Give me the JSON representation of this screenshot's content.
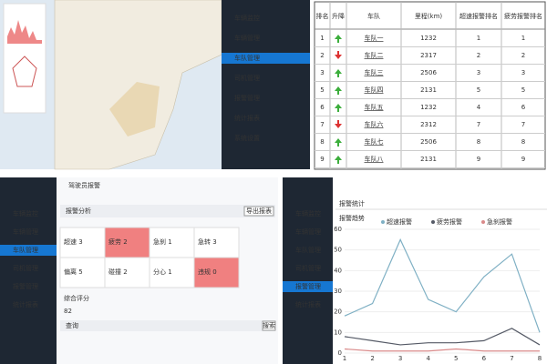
{
  "map_panel": {
    "menu": [
      "车辆监控",
      "车辆管理",
      "车队管理",
      "司机管理",
      "报警管理",
      "统计报表",
      "系统设置"
    ],
    "active": 2
  },
  "table": {
    "headers": [
      "排名",
      "升降",
      "车队",
      "里程(km)",
      "超速报警排名",
      "疲劳报警排名"
    ],
    "trend": [
      "up",
      "down",
      "up",
      "up",
      "up",
      "down",
      "up",
      "up"
    ],
    "rows": [
      [
        "1",
        "车队一",
        "1232",
        "1",
        "1"
      ],
      [
        "2",
        "车队二",
        "2317",
        "2",
        "2"
      ],
      [
        "3",
        "车队三",
        "2506",
        "3",
        "3"
      ],
      [
        "5",
        "车队四",
        "2131",
        "5",
        "5"
      ],
      [
        "6",
        "车队五",
        "1232",
        "4",
        "6"
      ],
      [
        "7",
        "车队六",
        "2312",
        "7",
        "7"
      ],
      [
        "8",
        "车队七",
        "2506",
        "8",
        "8"
      ],
      [
        "9",
        "车队八",
        "2131",
        "9",
        "9"
      ]
    ]
  },
  "grid_panel": {
    "menu": [
      "车辆监控",
      "车辆管理",
      "车队管理",
      "司机管理",
      "报警管理",
      "统计报表"
    ],
    "active": 2,
    "title": "驾驶员报警",
    "section": "报警分析",
    "button": "导出报表",
    "cells": [
      "超速 3",
      "疲劳 2",
      "急刹 1",
      "急转 3",
      "偏离 5",
      "碰撞 2",
      "分心 1",
      "违规 0"
    ],
    "alert_cells": [
      1,
      7
    ],
    "score_label": "综合评分",
    "score": "82",
    "query_label": "查询",
    "query_button": "搜索"
  },
  "chart_data": {
    "type": "line",
    "title": "报警趋势",
    "tab": "报警统计",
    "menu": [
      "车辆监控",
      "车辆管理",
      "车队管理",
      "司机管理",
      "报警管理",
      "统计报表"
    ],
    "active": 4,
    "categories": [
      "1",
      "2",
      "3",
      "4",
      "5",
      "6",
      "7",
      "8"
    ],
    "series": [
      {
        "name": "超速报警",
        "color": "#7fb0c4",
        "values": [
          18,
          24,
          55,
          26,
          20,
          37,
          48,
          10
        ]
      },
      {
        "name": "疲劳报警",
        "color": "#555a66",
        "values": [
          8,
          6,
          4,
          5,
          5,
          6,
          12,
          4
        ]
      },
      {
        "name": "急刹报警",
        "color": "#d98a8a",
        "values": [
          2,
          1,
          1,
          1,
          2,
          1,
          1,
          1
        ]
      }
    ],
    "ylim": [
      0,
      60
    ],
    "yticks": [
      0,
      10,
      20,
      30,
      40,
      50,
      60
    ],
    "grid": true
  }
}
